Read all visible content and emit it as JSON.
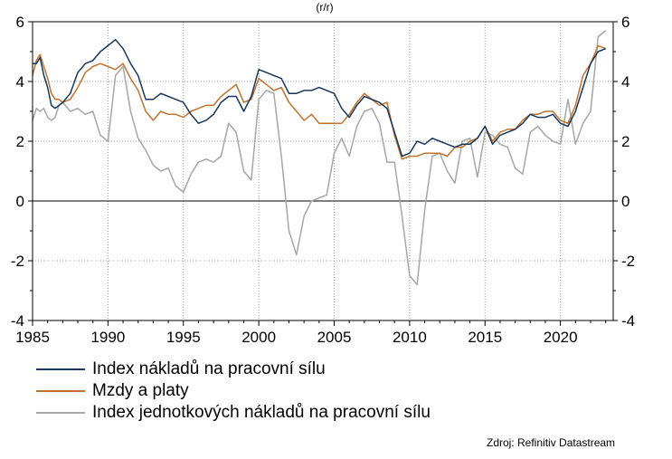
{
  "chart_data": {
    "type": "line",
    "title": "(r/r)",
    "ylim": [
      -4,
      6
    ],
    "yticks": [
      -4,
      -2,
      0,
      2,
      4,
      6
    ],
    "xlim": [
      1985,
      2023.5
    ],
    "xticks": [
      1985,
      1990,
      1995,
      2000,
      2005,
      2010,
      2015,
      2020
    ],
    "grid": true,
    "legend_position": "bottom",
    "series": [
      {
        "name": "Index nákladů na pracovní sílu",
        "color": "#17375e",
        "x": [
          1985.0,
          1985.25,
          1985.5,
          1985.75,
          1986.0,
          1986.25,
          1986.5,
          1986.75,
          1987.0,
          1987.5,
          1988.0,
          1988.5,
          1989.0,
          1989.5,
          1990.0,
          1990.5,
          1991.0,
          1991.5,
          1992.0,
          1992.5,
          1993.0,
          1993.5,
          1994.0,
          1994.5,
          1995.0,
          1995.5,
          1996.0,
          1996.5,
          1997.0,
          1997.5,
          1998.0,
          1998.5,
          1999.0,
          1999.5,
          2000.0,
          2000.5,
          2001.0,
          2001.5,
          2002.0,
          2002.5,
          2003.0,
          2003.5,
          2004.0,
          2004.5,
          2005.0,
          2005.5,
          2006.0,
          2006.5,
          2007.0,
          2007.5,
          2008.0,
          2008.5,
          2009.0,
          2009.5,
          2010.0,
          2010.5,
          2011.0,
          2011.5,
          2012.0,
          2012.5,
          2013.0,
          2013.5,
          2014.0,
          2014.5,
          2015.0,
          2015.5,
          2016.0,
          2016.5,
          2017.0,
          2017.5,
          2018.0,
          2018.5,
          2019.0,
          2019.5,
          2020.0,
          2020.5,
          2021.0,
          2021.5,
          2022.0,
          2022.5,
          2023.0
        ],
        "values": [
          4.6,
          4.6,
          4.8,
          4.2,
          3.8,
          3.2,
          3.1,
          3.2,
          3.3,
          3.6,
          4.3,
          4.6,
          4.7,
          5.0,
          5.2,
          5.4,
          5.1,
          4.6,
          4.2,
          3.4,
          3.4,
          3.6,
          3.5,
          3.4,
          3.3,
          2.9,
          2.6,
          2.7,
          2.9,
          3.3,
          3.5,
          3.5,
          3.0,
          3.5,
          4.4,
          4.3,
          4.2,
          4.1,
          3.6,
          3.6,
          3.7,
          3.7,
          3.8,
          3.7,
          3.6,
          3.1,
          2.8,
          3.2,
          3.5,
          3.4,
          3.3,
          3.1,
          2.3,
          1.5,
          1.6,
          2.0,
          1.9,
          2.1,
          2.0,
          1.9,
          1.8,
          1.9,
          1.9,
          2.1,
          2.5,
          1.9,
          2.2,
          2.3,
          2.4,
          2.6,
          2.9,
          2.8,
          2.8,
          2.9,
          2.6,
          2.5,
          3.0,
          3.8,
          4.6,
          5.0,
          5.1
        ]
      },
      {
        "name": "Mzdy a platy",
        "color": "#c0732e",
        "x": [
          1985.0,
          1985.25,
          1985.5,
          1985.75,
          1986.0,
          1986.25,
          1986.5,
          1986.75,
          1987.0,
          1987.5,
          1988.0,
          1988.5,
          1989.0,
          1989.5,
          1990.0,
          1990.5,
          1991.0,
          1991.5,
          1992.0,
          1992.5,
          1993.0,
          1993.5,
          1994.0,
          1994.5,
          1995.0,
          1995.5,
          1996.0,
          1996.5,
          1997.0,
          1997.5,
          1998.0,
          1998.5,
          1999.0,
          1999.5,
          2000.0,
          2000.5,
          2001.0,
          2001.5,
          2002.0,
          2002.5,
          2003.0,
          2003.5,
          2004.0,
          2004.5,
          2005.0,
          2005.5,
          2006.0,
          2006.5,
          2007.0,
          2007.5,
          2008.0,
          2008.5,
          2009.0,
          2009.5,
          2010.0,
          2010.5,
          2011.0,
          2011.5,
          2012.0,
          2012.5,
          2013.0,
          2013.5,
          2014.0,
          2014.5,
          2015.0,
          2015.5,
          2016.0,
          2016.5,
          2017.0,
          2017.5,
          2018.0,
          2018.5,
          2019.0,
          2019.5,
          2020.0,
          2020.5,
          2021.0,
          2021.5,
          2022.0,
          2022.5,
          2023.0
        ],
        "values": [
          4.2,
          4.7,
          4.9,
          4.5,
          4.1,
          3.6,
          3.4,
          3.4,
          3.3,
          3.4,
          3.8,
          4.3,
          4.5,
          4.6,
          4.5,
          4.4,
          4.6,
          4.1,
          3.7,
          3.0,
          2.7,
          3.0,
          2.9,
          2.9,
          2.8,
          3.0,
          3.1,
          3.2,
          3.2,
          3.5,
          3.7,
          3.9,
          3.3,
          3.4,
          4.1,
          3.9,
          3.7,
          3.8,
          3.3,
          3.0,
          2.7,
          2.9,
          2.6,
          2.6,
          2.6,
          2.6,
          2.9,
          3.3,
          3.6,
          3.4,
          3.2,
          3.3,
          2.2,
          1.4,
          1.5,
          1.5,
          1.6,
          1.6,
          1.6,
          1.5,
          1.8,
          1.8,
          2.0,
          2.1,
          2.5,
          2.0,
          2.3,
          2.4,
          2.4,
          2.7,
          2.9,
          2.9,
          3.0,
          3.0,
          2.7,
          2.6,
          3.2,
          4.2,
          4.6,
          5.2,
          5.1
        ]
      },
      {
        "name": "Index jednotkových nákladů na pracovní sílu",
        "color": "#a6a6a6",
        "x": [
          1985.0,
          1985.25,
          1985.5,
          1985.75,
          1986.0,
          1986.25,
          1986.5,
          1986.75,
          1987.0,
          1987.5,
          1988.0,
          1988.5,
          1989.0,
          1989.5,
          1990.0,
          1990.5,
          1991.0,
          1991.5,
          1992.0,
          1992.5,
          1993.0,
          1993.5,
          1994.0,
          1994.5,
          1995.0,
          1995.5,
          1996.0,
          1996.5,
          1997.0,
          1997.5,
          1998.0,
          1998.5,
          1999.0,
          1999.5,
          2000.0,
          2000.5,
          2001.0,
          2001.5,
          2002.0,
          2002.5,
          2003.0,
          2003.5,
          2004.0,
          2004.5,
          2005.0,
          2005.5,
          2006.0,
          2006.5,
          2007.0,
          2007.5,
          2008.0,
          2008.5,
          2009.0,
          2009.5,
          2010.0,
          2010.5,
          2011.0,
          2011.5,
          2012.0,
          2012.5,
          2013.0,
          2013.5,
          2014.0,
          2014.5,
          2015.0,
          2015.5,
          2016.0,
          2016.5,
          2017.0,
          2017.5,
          2018.0,
          2018.5,
          2019.0,
          2019.5,
          2020.0,
          2020.5,
          2021.0,
          2021.5,
          2022.0,
          2022.5,
          2023.0
        ],
        "values": [
          2.7,
          3.1,
          3.0,
          3.1,
          2.8,
          2.7,
          2.8,
          3.2,
          3.3,
          3.0,
          3.1,
          2.9,
          3.0,
          2.2,
          2.0,
          4.2,
          4.5,
          3.0,
          2.1,
          1.7,
          1.2,
          1.0,
          1.1,
          0.5,
          0.3,
          0.9,
          1.3,
          1.4,
          1.3,
          1.5,
          2.6,
          2.3,
          1.0,
          0.7,
          3.4,
          3.7,
          3.6,
          1.5,
          -1.0,
          -1.8,
          -0.5,
          0.0,
          0.1,
          0.2,
          1.6,
          2.1,
          1.5,
          2.5,
          3.0,
          3.1,
          2.6,
          1.3,
          1.3,
          -0.5,
          -2.5,
          -2.8,
          -0.3,
          1.5,
          1.6,
          1.0,
          0.6,
          2.0,
          2.1,
          0.8,
          2.3,
          2.2,
          1.9,
          1.8,
          1.1,
          0.9,
          2.3,
          2.5,
          2.2,
          2.0,
          1.9,
          3.4,
          1.9,
          2.6,
          3.0,
          5.5,
          5.7
        ]
      }
    ],
    "source": "Zdroj: Refinitiv Datastream"
  }
}
